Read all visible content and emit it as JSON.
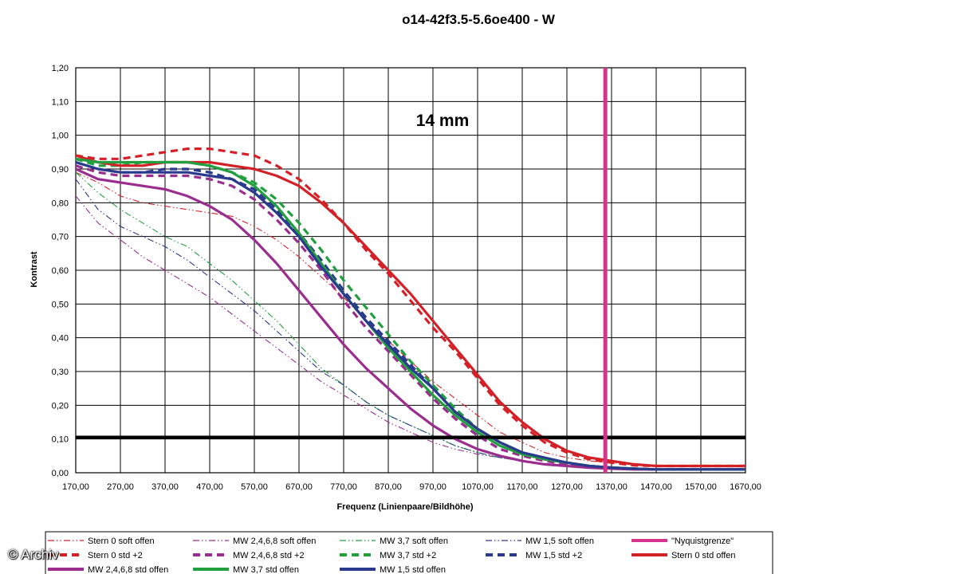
{
  "chart_data": {
    "type": "line",
    "title": "o14-42f3.5-5.6oe400 - W",
    "annotation": "14 mm",
    "xlabel": "Frequenz (Linienpaare/Bildhöhe)",
    "ylabel": "Kontrast",
    "xlim": [
      170,
      1670
    ],
    "ylim": [
      0,
      1.2
    ],
    "x_ticks": [
      "170,00",
      "270,00",
      "370,00",
      "470,00",
      "570,00",
      "670,00",
      "770,00",
      "870,00",
      "970,00",
      "1070,00",
      "1170,00",
      "1270,00",
      "1370,00",
      "1470,00",
      "1570,00",
      "1670,00"
    ],
    "y_ticks": [
      "0,00",
      "0,10",
      "0,20",
      "0,30",
      "0,40",
      "0,50",
      "0,60",
      "0,70",
      "0,80",
      "0,90",
      "1,00",
      "1,10",
      "1,20"
    ],
    "grid": true,
    "legend_position": "bottom",
    "reference_lines": [
      {
        "orientation": "horizontal",
        "y": 0.105,
        "color": "#000000"
      },
      {
        "orientation": "vertical",
        "x": 1356,
        "name": "\"Nyquistgrenze\"",
        "color": "#d6338c"
      }
    ],
    "series": [
      {
        "name": "Stern 0 soft offen",
        "color": "#d42027",
        "style": "dashdotdot",
        "x": [
          170,
          220,
          270,
          320,
          370,
          420,
          470,
          520,
          570,
          620,
          670,
          720,
          770,
          820,
          870,
          920,
          970,
          1020,
          1070,
          1120,
          1170,
          1220,
          1270,
          1320,
          1370,
          1420,
          1470,
          1520,
          1570,
          1620,
          1670
        ],
        "y": [
          0.89,
          0.86,
          0.82,
          0.8,
          0.79,
          0.78,
          0.77,
          0.76,
          0.73,
          0.69,
          0.64,
          0.58,
          0.52,
          0.45,
          0.39,
          0.33,
          0.27,
          0.22,
          0.17,
          0.12,
          0.09,
          0.06,
          0.045,
          0.035,
          0.03,
          0.025,
          0.02,
          0.02,
          0.02,
          0.02,
          0.02
        ]
      },
      {
        "name": "MW 2,4,6,8 soft offen",
        "color": "#9b2d8f",
        "style": "dashdotdot",
        "x": [
          170,
          220,
          270,
          320,
          370,
          420,
          470,
          520,
          570,
          620,
          670,
          720,
          770,
          820,
          870,
          920,
          970,
          1020,
          1070,
          1120,
          1170,
          1220,
          1270,
          1320,
          1370,
          1420,
          1470,
          1520,
          1570,
          1620,
          1670
        ],
        "y": [
          0.82,
          0.74,
          0.69,
          0.64,
          0.6,
          0.56,
          0.52,
          0.47,
          0.42,
          0.37,
          0.32,
          0.27,
          0.23,
          0.19,
          0.15,
          0.12,
          0.09,
          0.07,
          0.055,
          0.045,
          0.035,
          0.025,
          0.02,
          0.015,
          0.012,
          0.01,
          0.01,
          0.01,
          0.01,
          0.01,
          0.01
        ]
      },
      {
        "name": "MW 3,7 soft offen",
        "color": "#22a040",
        "style": "dashdotdot",
        "x": [
          170,
          220,
          270,
          320,
          370,
          420,
          470,
          520,
          570,
          620,
          670,
          720,
          770,
          820,
          870,
          920,
          970,
          1020,
          1070,
          1120,
          1170,
          1220,
          1270,
          1320,
          1370,
          1420,
          1470,
          1520,
          1570,
          1620,
          1670
        ],
        "y": [
          0.89,
          0.83,
          0.78,
          0.74,
          0.7,
          0.67,
          0.62,
          0.57,
          0.51,
          0.45,
          0.38,
          0.31,
          0.26,
          0.21,
          0.17,
          0.14,
          0.11,
          0.08,
          0.06,
          0.045,
          0.035,
          0.025,
          0.02,
          0.015,
          0.012,
          0.01,
          0.01,
          0.01,
          0.01,
          0.01,
          0.01
        ]
      },
      {
        "name": "MW 1,5 soft offen",
        "color": "#2a3a8c",
        "style": "dashdotdot",
        "x": [
          170,
          220,
          270,
          320,
          370,
          420,
          470,
          520,
          570,
          620,
          670,
          720,
          770,
          820,
          870,
          920,
          970,
          1020,
          1070,
          1120,
          1170,
          1220,
          1270,
          1320,
          1370,
          1420,
          1470,
          1520,
          1570,
          1620,
          1670
        ],
        "y": [
          0.87,
          0.78,
          0.73,
          0.7,
          0.67,
          0.63,
          0.58,
          0.53,
          0.48,
          0.42,
          0.36,
          0.3,
          0.26,
          0.21,
          0.17,
          0.14,
          0.11,
          0.08,
          0.06,
          0.045,
          0.035,
          0.025,
          0.02,
          0.015,
          0.012,
          0.01,
          0.01,
          0.01,
          0.01,
          0.01,
          0.01
        ]
      },
      {
        "name": "\"Nyquistgrenze\"",
        "color": "#d6338c",
        "style": "solid",
        "x": [
          1356,
          1356
        ],
        "y": [
          0,
          1.2
        ]
      },
      {
        "name": "Stern 0 std +2",
        "color": "#d42027",
        "style": "dash",
        "x": [
          170,
          220,
          270,
          320,
          370,
          420,
          470,
          520,
          570,
          620,
          670,
          720,
          770,
          820,
          870,
          920,
          970,
          1020,
          1070,
          1120,
          1170,
          1220,
          1270,
          1320,
          1370,
          1420,
          1470,
          1520,
          1570,
          1620,
          1670
        ],
        "y": [
          0.94,
          0.93,
          0.93,
          0.94,
          0.95,
          0.96,
          0.96,
          0.95,
          0.94,
          0.91,
          0.87,
          0.81,
          0.74,
          0.66,
          0.59,
          0.51,
          0.43,
          0.36,
          0.28,
          0.2,
          0.14,
          0.09,
          0.06,
          0.04,
          0.03,
          0.022,
          0.02,
          0.02,
          0.02,
          0.02,
          0.02
        ]
      },
      {
        "name": "MW 2,4,6,8 std +2",
        "color": "#9b2d8f",
        "style": "dash",
        "x": [
          170,
          220,
          270,
          320,
          370,
          420,
          470,
          520,
          570,
          620,
          670,
          720,
          770,
          820,
          870,
          920,
          970,
          1020,
          1070,
          1120,
          1170,
          1220,
          1270,
          1320,
          1370,
          1420,
          1470,
          1520,
          1570,
          1620,
          1670
        ],
        "y": [
          0.91,
          0.89,
          0.88,
          0.88,
          0.88,
          0.88,
          0.87,
          0.85,
          0.81,
          0.75,
          0.68,
          0.6,
          0.51,
          0.43,
          0.36,
          0.29,
          0.22,
          0.16,
          0.11,
          0.07,
          0.05,
          0.035,
          0.025,
          0.02,
          0.015,
          0.012,
          0.01,
          0.01,
          0.01,
          0.01,
          0.01
        ]
      },
      {
        "name": "MW 3,7 std +2",
        "color": "#22a040",
        "style": "dash",
        "x": [
          170,
          220,
          270,
          320,
          370,
          420,
          470,
          520,
          570,
          620,
          670,
          720,
          770,
          820,
          870,
          920,
          970,
          1020,
          1070,
          1120,
          1170,
          1220,
          1270,
          1320,
          1370,
          1420,
          1470,
          1520,
          1570,
          1620,
          1670
        ],
        "y": [
          0.93,
          0.91,
          0.91,
          0.92,
          0.92,
          0.92,
          0.91,
          0.89,
          0.86,
          0.81,
          0.74,
          0.66,
          0.57,
          0.49,
          0.41,
          0.33,
          0.26,
          0.19,
          0.13,
          0.09,
          0.06,
          0.04,
          0.03,
          0.02,
          0.015,
          0.012,
          0.01,
          0.01,
          0.01,
          0.01,
          0.01
        ]
      },
      {
        "name": "MW 1,5 std +2",
        "color": "#2a3a8c",
        "style": "dash",
        "x": [
          170,
          220,
          270,
          320,
          370,
          420,
          470,
          520,
          570,
          620,
          670,
          720,
          770,
          820,
          870,
          920,
          970,
          1020,
          1070,
          1120,
          1170,
          1220,
          1270,
          1320,
          1370,
          1420,
          1470,
          1520,
          1570,
          1620,
          1670
        ],
        "y": [
          0.92,
          0.9,
          0.89,
          0.89,
          0.9,
          0.9,
          0.89,
          0.87,
          0.84,
          0.78,
          0.71,
          0.63,
          0.54,
          0.46,
          0.39,
          0.32,
          0.25,
          0.18,
          0.13,
          0.09,
          0.06,
          0.04,
          0.03,
          0.02,
          0.015,
          0.012,
          0.01,
          0.01,
          0.01,
          0.01,
          0.01
        ]
      },
      {
        "name": "Stern 0 std offen",
        "color": "#d42027",
        "style": "solid",
        "x": [
          170,
          220,
          270,
          320,
          370,
          420,
          470,
          520,
          570,
          620,
          670,
          720,
          770,
          820,
          870,
          920,
          970,
          1020,
          1070,
          1120,
          1170,
          1220,
          1270,
          1320,
          1370,
          1420,
          1470,
          1520,
          1570,
          1620,
          1670
        ],
        "y": [
          0.94,
          0.92,
          0.91,
          0.91,
          0.92,
          0.92,
          0.92,
          0.91,
          0.9,
          0.88,
          0.85,
          0.8,
          0.74,
          0.67,
          0.6,
          0.53,
          0.45,
          0.37,
          0.29,
          0.21,
          0.15,
          0.1,
          0.065,
          0.045,
          0.035,
          0.025,
          0.02,
          0.02,
          0.02,
          0.02,
          0.02
        ]
      },
      {
        "name": "MW 2,4,6,8 std offen",
        "color": "#9b2d8f",
        "style": "solid",
        "x": [
          170,
          220,
          270,
          320,
          370,
          420,
          470,
          520,
          570,
          620,
          670,
          720,
          770,
          820,
          870,
          920,
          970,
          1020,
          1070,
          1120,
          1170,
          1220,
          1270,
          1320,
          1370,
          1420,
          1470,
          1520,
          1570,
          1620,
          1670
        ],
        "y": [
          0.9,
          0.87,
          0.86,
          0.85,
          0.84,
          0.82,
          0.79,
          0.75,
          0.69,
          0.62,
          0.54,
          0.46,
          0.38,
          0.31,
          0.25,
          0.19,
          0.14,
          0.1,
          0.07,
          0.05,
          0.035,
          0.025,
          0.02,
          0.015,
          0.012,
          0.01,
          0.01,
          0.01,
          0.01,
          0.01,
          0.01
        ]
      },
      {
        "name": "MW 3,7 std offen",
        "color": "#22a040",
        "style": "solid",
        "x": [
          170,
          220,
          270,
          320,
          370,
          420,
          470,
          520,
          570,
          620,
          670,
          720,
          770,
          820,
          870,
          920,
          970,
          1020,
          1070,
          1120,
          1170,
          1220,
          1270,
          1320,
          1370,
          1420,
          1470,
          1520,
          1570,
          1620,
          1670
        ],
        "y": [
          0.93,
          0.92,
          0.92,
          0.92,
          0.92,
          0.92,
          0.91,
          0.89,
          0.85,
          0.79,
          0.71,
          0.62,
          0.53,
          0.45,
          0.37,
          0.3,
          0.23,
          0.17,
          0.12,
          0.08,
          0.055,
          0.04,
          0.03,
          0.02,
          0.015,
          0.012,
          0.01,
          0.01,
          0.01,
          0.01,
          0.01
        ]
      },
      {
        "name": "MW 1,5 std offen",
        "color": "#2a3a8c",
        "style": "solid",
        "x": [
          170,
          220,
          270,
          320,
          370,
          420,
          470,
          520,
          570,
          620,
          670,
          720,
          770,
          820,
          870,
          920,
          970,
          1020,
          1070,
          1120,
          1170,
          1220,
          1270,
          1320,
          1370,
          1420,
          1470,
          1520,
          1570,
          1620,
          1670
        ],
        "y": [
          0.92,
          0.9,
          0.89,
          0.89,
          0.89,
          0.89,
          0.88,
          0.87,
          0.83,
          0.77,
          0.7,
          0.61,
          0.53,
          0.45,
          0.38,
          0.31,
          0.25,
          0.18,
          0.13,
          0.09,
          0.06,
          0.045,
          0.03,
          0.02,
          0.015,
          0.012,
          0.01,
          0.01,
          0.01,
          0.01,
          0.01
        ]
      }
    ]
  },
  "watermark": "© Archiv"
}
